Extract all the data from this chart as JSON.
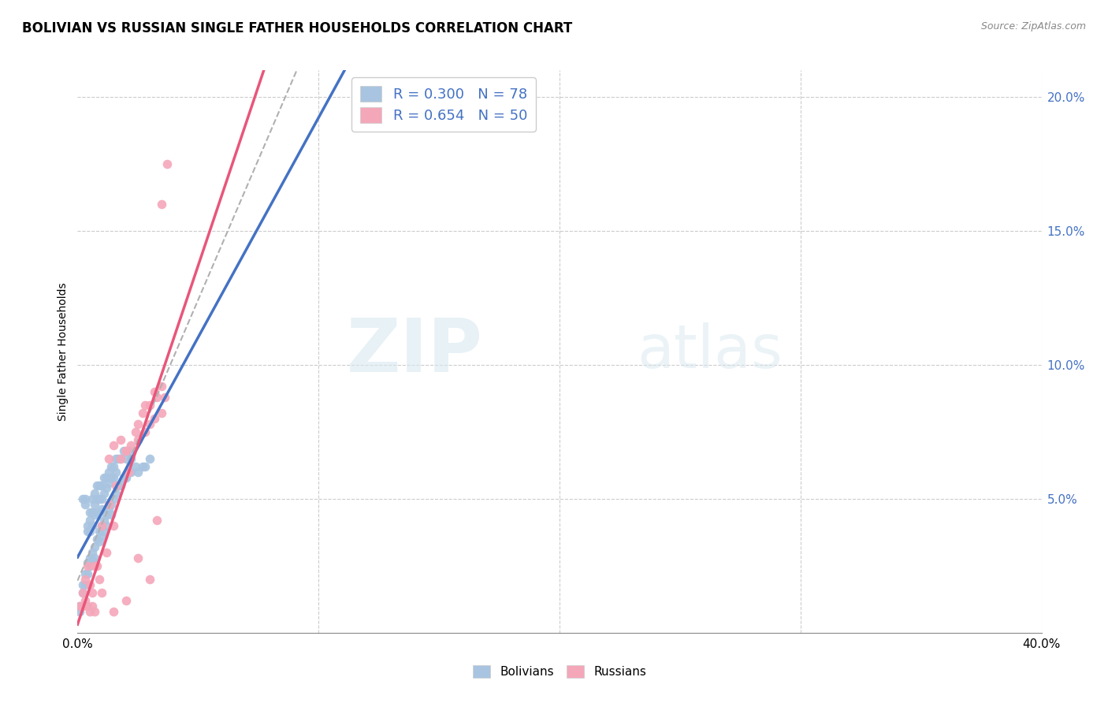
{
  "title": "BOLIVIAN VS RUSSIAN SINGLE FATHER HOUSEHOLDS CORRELATION CHART",
  "source": "Source: ZipAtlas.com",
  "ylabel": "Single Father Households",
  "xlim": [
    0.0,
    0.4
  ],
  "ylim": [
    0.0,
    0.21
  ],
  "bolivian_R": 0.3,
  "bolivian_N": 78,
  "russian_R": 0.654,
  "russian_N": 50,
  "bolivian_color": "#a8c4e0",
  "russian_color": "#f4a7b9",
  "bolivian_line_color": "#4472c4",
  "russian_line_color": "#e8567a",
  "trendline_color": "#b0b0b0",
  "watermark_zip": "ZIP",
  "watermark_atlas": "atlas",
  "background_color": "#ffffff",
  "grid_color": "#cccccc",
  "legend_text_color": "#4472c4",
  "tick_label_color_right": "#4472c4",
  "bolivian_scatter_x": [
    0.002,
    0.003,
    0.003,
    0.004,
    0.004,
    0.005,
    0.005,
    0.005,
    0.006,
    0.006,
    0.006,
    0.007,
    0.007,
    0.007,
    0.008,
    0.008,
    0.008,
    0.009,
    0.009,
    0.01,
    0.01,
    0.01,
    0.011,
    0.011,
    0.012,
    0.012,
    0.013,
    0.013,
    0.014,
    0.014,
    0.015,
    0.015,
    0.016,
    0.016,
    0.017,
    0.018,
    0.019,
    0.02,
    0.021,
    0.022,
    0.001,
    0.001,
    0.002,
    0.002,
    0.003,
    0.003,
    0.004,
    0.004,
    0.005,
    0.005,
    0.006,
    0.006,
    0.007,
    0.007,
    0.008,
    0.009,
    0.009,
    0.01,
    0.01,
    0.011,
    0.011,
    0.012,
    0.012,
    0.013,
    0.014,
    0.014,
    0.015,
    0.016,
    0.017,
    0.018,
    0.019,
    0.02,
    0.022,
    0.024,
    0.025,
    0.027,
    0.028,
    0.03
  ],
  "bolivian_scatter_y": [
    0.05,
    0.05,
    0.048,
    0.04,
    0.038,
    0.045,
    0.042,
    0.038,
    0.05,
    0.045,
    0.04,
    0.052,
    0.048,
    0.044,
    0.055,
    0.05,
    0.045,
    0.055,
    0.05,
    0.055,
    0.05,
    0.046,
    0.058,
    0.052,
    0.058,
    0.054,
    0.06,
    0.056,
    0.062,
    0.058,
    0.062,
    0.058,
    0.065,
    0.06,
    0.065,
    0.065,
    0.068,
    0.065,
    0.068,
    0.065,
    0.01,
    0.008,
    0.018,
    0.015,
    0.022,
    0.018,
    0.026,
    0.022,
    0.028,
    0.025,
    0.03,
    0.027,
    0.032,
    0.028,
    0.035,
    0.038,
    0.034,
    0.04,
    0.036,
    0.042,
    0.038,
    0.044,
    0.04,
    0.046,
    0.048,
    0.044,
    0.05,
    0.052,
    0.055,
    0.055,
    0.058,
    0.058,
    0.06,
    0.062,
    0.06,
    0.062,
    0.062,
    0.065
  ],
  "russian_scatter_x": [
    0.001,
    0.002,
    0.002,
    0.003,
    0.003,
    0.004,
    0.004,
    0.005,
    0.006,
    0.006,
    0.007,
    0.008,
    0.009,
    0.01,
    0.012,
    0.013,
    0.015,
    0.016,
    0.018,
    0.02,
    0.021,
    0.022,
    0.024,
    0.025,
    0.027,
    0.028,
    0.03,
    0.032,
    0.033,
    0.035,
    0.013,
    0.015,
    0.018,
    0.02,
    0.025,
    0.028,
    0.03,
    0.032,
    0.035,
    0.036,
    0.005,
    0.007,
    0.01,
    0.015,
    0.02,
    0.025,
    0.03,
    0.033,
    0.035,
    0.037
  ],
  "russian_scatter_y": [
    0.01,
    0.015,
    0.01,
    0.02,
    0.012,
    0.025,
    0.01,
    0.018,
    0.015,
    0.01,
    0.025,
    0.025,
    0.02,
    0.04,
    0.03,
    0.048,
    0.04,
    0.055,
    0.065,
    0.068,
    0.06,
    0.07,
    0.075,
    0.078,
    0.082,
    0.085,
    0.085,
    0.09,
    0.088,
    0.092,
    0.065,
    0.07,
    0.072,
    0.068,
    0.072,
    0.075,
    0.078,
    0.08,
    0.082,
    0.088,
    0.008,
    0.008,
    0.015,
    0.008,
    0.012,
    0.028,
    0.02,
    0.042,
    0.16,
    0.175
  ]
}
